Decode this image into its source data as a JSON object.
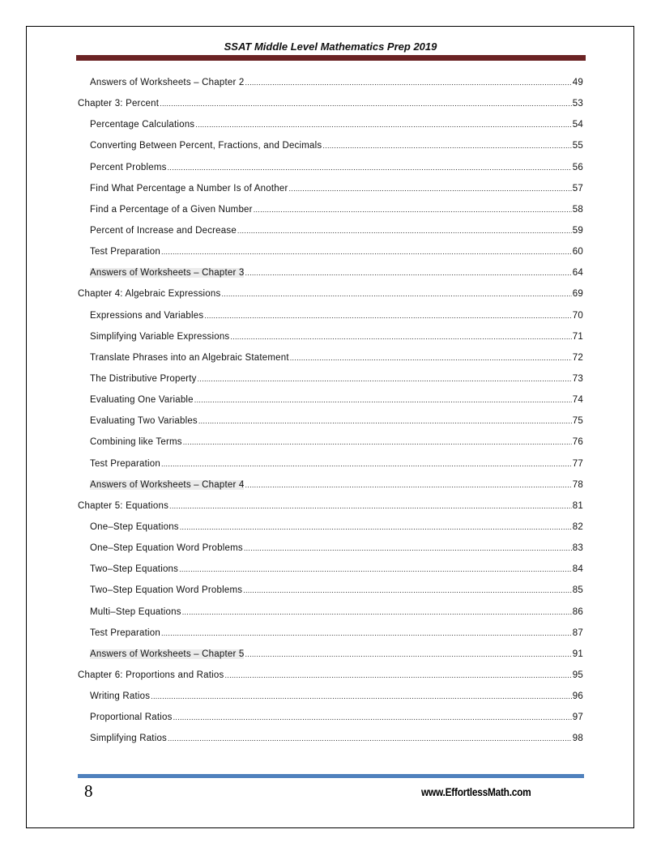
{
  "header": {
    "title": "SSAT Middle Level Mathematics Prep 2019"
  },
  "toc": [
    {
      "label": "Answers of Worksheets – Chapter 2",
      "page": "49",
      "level": 2,
      "highlight": false
    },
    {
      "label": "Chapter 3: Percent",
      "page": "53",
      "level": 1,
      "highlight": false
    },
    {
      "label": "Percentage Calculations",
      "page": "54",
      "level": 2,
      "highlight": false
    },
    {
      "label": "Converting Between Percent, Fractions, and Decimals",
      "page": "55",
      "level": 2,
      "highlight": false
    },
    {
      "label": "Percent Problems",
      "page": "56",
      "level": 2,
      "highlight": false
    },
    {
      "label": "Find What Percentage a Number Is of Another",
      "page": "57",
      "level": 2,
      "highlight": false
    },
    {
      "label": "Find a Percentage of a Given Number",
      "page": "58",
      "level": 2,
      "highlight": false
    },
    {
      "label": "Percent of Increase and Decrease",
      "page": "59",
      "level": 2,
      "highlight": false
    },
    {
      "label": "Test Preparation",
      "page": "60",
      "level": 2,
      "highlight": false
    },
    {
      "label": "Answers of Worksheets – Chapter 3",
      "page": "64",
      "level": 2,
      "highlight": true
    },
    {
      "label": "Chapter 4: Algebraic Expressions",
      "page": "69",
      "level": 1,
      "highlight": false
    },
    {
      "label": "Expressions and Variables",
      "page": "70",
      "level": 2,
      "highlight": false
    },
    {
      "label": "Simplifying Variable Expressions",
      "page": "71",
      "level": 2,
      "highlight": false
    },
    {
      "label": "Translate Phrases into an Algebraic Statement",
      "page": "72",
      "level": 2,
      "highlight": false
    },
    {
      "label": "The Distributive Property",
      "page": "73",
      "level": 2,
      "highlight": false
    },
    {
      "label": "Evaluating One Variable",
      "page": "74",
      "level": 2,
      "highlight": false
    },
    {
      "label": "Evaluating Two Variables",
      "page": "75",
      "level": 2,
      "highlight": false
    },
    {
      "label": "Combining like Terms",
      "page": "76",
      "level": 2,
      "highlight": false
    },
    {
      "label": "Test Preparation",
      "page": "77",
      "level": 2,
      "highlight": false
    },
    {
      "label": "Answers of Worksheets – Chapter 4",
      "page": "78",
      "level": 2,
      "highlight": true
    },
    {
      "label": "Chapter 5: Equations",
      "page": "81",
      "level": 1,
      "highlight": false
    },
    {
      "label": "One–Step Equations",
      "page": "82",
      "level": 2,
      "highlight": false
    },
    {
      "label": "One–Step Equation Word Problems",
      "page": "83",
      "level": 2,
      "highlight": false
    },
    {
      "label": "Two–Step Equations",
      "page": "84",
      "level": 2,
      "highlight": false
    },
    {
      "label": "Two–Step Equation Word Problems",
      "page": "85",
      "level": 2,
      "highlight": false
    },
    {
      "label": "Multi–Step Equations",
      "page": "86",
      "level": 2,
      "highlight": false
    },
    {
      "label": "Test Preparation",
      "page": "87",
      "level": 2,
      "highlight": false
    },
    {
      "label": "Answers of Worksheets – Chapter 5",
      "page": "91",
      "level": 2,
      "highlight": true
    },
    {
      "label": "Chapter 6: Proportions and Ratios",
      "page": "95",
      "level": 1,
      "highlight": false
    },
    {
      "label": "Writing Ratios",
      "page": "96",
      "level": 2,
      "highlight": false
    },
    {
      "label": "Proportional Ratios",
      "page": "97",
      "level": 2,
      "highlight": false
    },
    {
      "label": "Simplifying Ratios",
      "page": "98",
      "level": 2,
      "highlight": false
    }
  ],
  "footer": {
    "page_number": "8",
    "url": "www.EffortlessMath.com"
  },
  "colors": {
    "header_bar": "#6b2324",
    "footer_bar": "#4f81bd",
    "highlight": "#ececec"
  }
}
